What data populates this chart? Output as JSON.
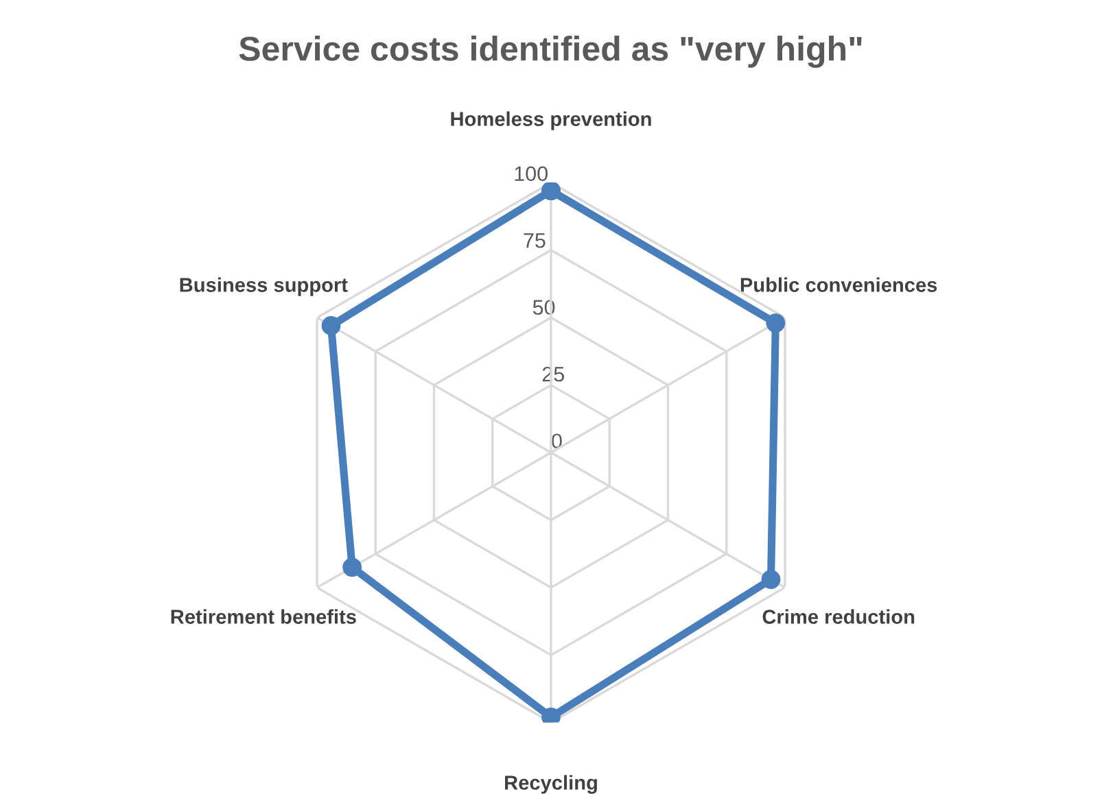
{
  "chart_data": {
    "type": "radar",
    "title": "Service costs identified as \"very high\"",
    "categories": [
      "Homeless prevention",
      "Public conveniences",
      "Crime reduction",
      "Recycling",
      "Retirement benefits",
      "Business support"
    ],
    "series": [
      {
        "color": "#4a7ebb",
        "values": [
          97,
          96,
          94,
          98,
          85,
          94
        ]
      }
    ],
    "ylim": [
      0,
      100
    ],
    "yticks": [
      0,
      25,
      50,
      75,
      100
    ],
    "grid": true,
    "marker": "circle",
    "line_style": "solid"
  }
}
